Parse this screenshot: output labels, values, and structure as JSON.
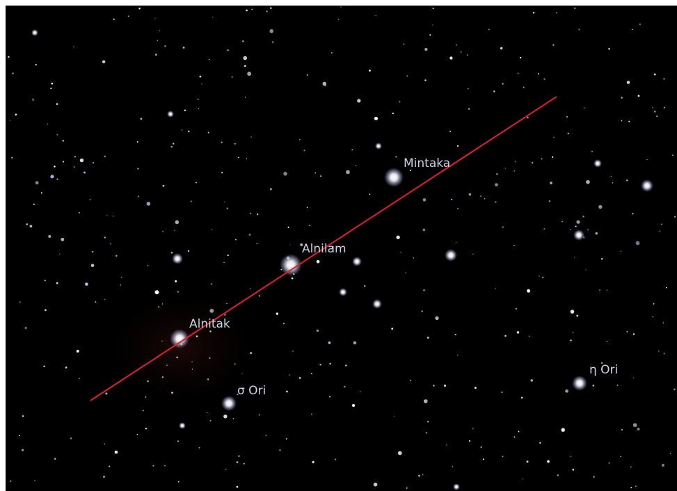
{
  "labels": [
    "Mintaka",
    "Alnilam",
    "Alnitak",
    "σ Ori",
    "η Ori"
  ]
}
